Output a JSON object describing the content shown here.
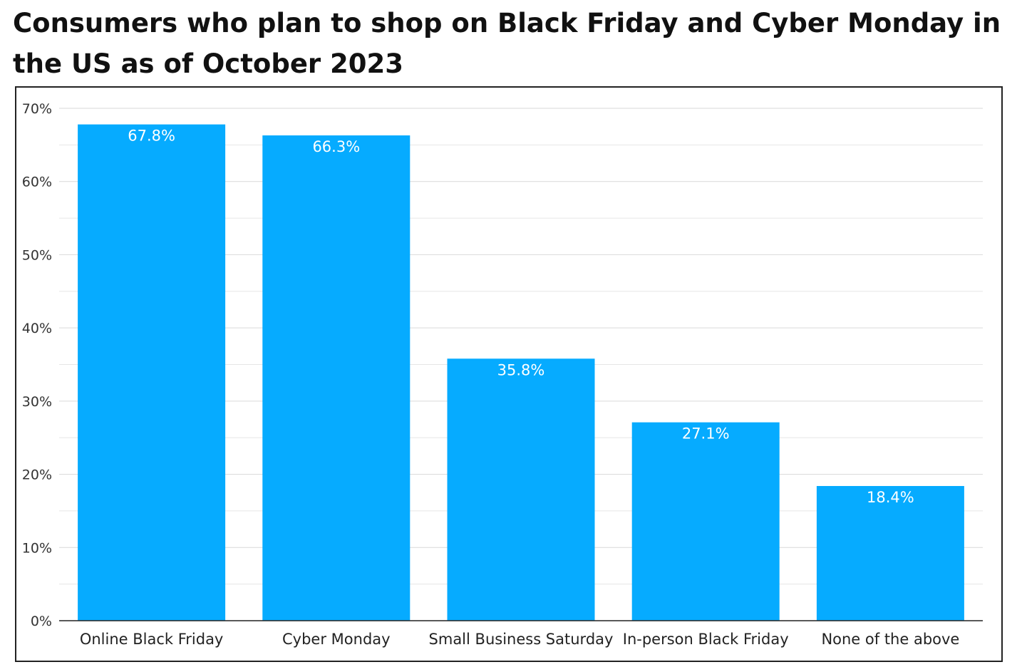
{
  "chart_data": {
    "type": "bar",
    "title": "Consumers who plan to shop on Black Friday and Cyber Monday in the US as of October 2023",
    "categories": [
      "Online Black Friday",
      "Cyber Monday",
      "Small Business Saturday",
      "In-person Black Friday",
      "None of the above"
    ],
    "values": [
      67.8,
      66.3,
      35.8,
      27.1,
      18.4
    ],
    "data_labels": [
      "67.8%",
      "66.3%",
      "35.8%",
      "27.1%",
      "18.4%"
    ],
    "ylim": [
      0,
      70
    ],
    "yticks": [
      0,
      10,
      20,
      30,
      40,
      50,
      60,
      70
    ],
    "ytick_labels": [
      "0%",
      "10%",
      "20%",
      "30%",
      "40%",
      "50%",
      "60%",
      "70%"
    ],
    "xlabel": "",
    "ylabel": "",
    "grid": true,
    "legend": "none",
    "bar_color": "#06abff"
  }
}
